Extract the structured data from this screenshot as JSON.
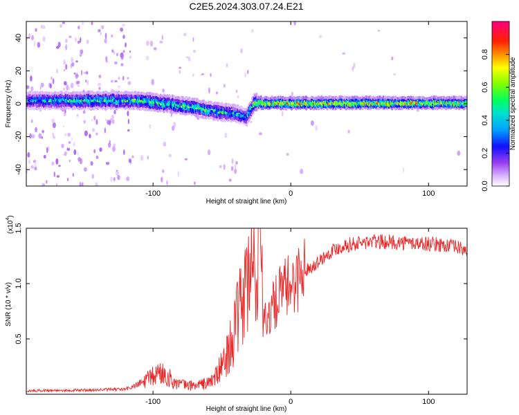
{
  "figure_title": "C2E5.2024.303.07.24.E21",
  "chart_data": [
    {
      "type": "heatmap",
      "title": "C2E5.2024.303.07.24.E21",
      "xlabel": "Height of straight line (km)",
      "ylabel": "Frequency (Hz)",
      "xlim": [
        -192,
        128
      ],
      "ylim": [
        -50,
        50
      ],
      "x_ticks": [
        -100,
        0,
        100
      ],
      "y_ticks": [
        -40,
        -20,
        0,
        20,
        40
      ],
      "x_tick_labels": [
        "-100",
        "0",
        "100"
      ],
      "y_tick_labels": [
        "-40",
        "-20",
        "0",
        "20",
        "40"
      ],
      "grid": false,
      "colorbar": {
        "label": "Normalized spectral amplitude",
        "range": [
          0,
          1
        ],
        "ticks": [
          0.0,
          0.2,
          0.4,
          0.6,
          0.8
        ],
        "tick_labels": [
          "0.0",
          "0.2",
          "0.4",
          "0.6",
          "0.8"
        ],
        "colormap": [
          "#ffffff",
          "#cc99ff",
          "#8a2be2",
          "#0000ff",
          "#00bfff",
          "#00ff7f",
          "#7fff00",
          "#ffff00",
          "#ff8000",
          "#ff0000",
          "#ff0080"
        ]
      },
      "ridge": {
        "x": [
          -192,
          -170,
          -150,
          -130,
          -112,
          -100,
          -90,
          -80,
          -70,
          -60,
          -50,
          -40,
          -32,
          -26,
          -20,
          -10,
          0,
          10,
          40,
          80,
          128
        ],
        "freq": [
          2,
          2,
          2,
          2,
          2,
          1,
          0,
          -1,
          -2,
          -4,
          -5,
          -6,
          -8,
          1,
          0.5,
          0.5,
          0.5,
          0.5,
          0.5,
          0.5,
          0.5
        ],
        "amplitude": [
          0.45,
          0.5,
          0.55,
          0.55,
          0.55,
          0.6,
          0.6,
          0.6,
          0.6,
          0.55,
          0.55,
          0.5,
          0.45,
          0.75,
          0.85,
          0.85,
          0.85,
          0.85,
          0.8,
          0.8,
          0.75
        ]
      }
    },
    {
      "type": "line",
      "xlabel": "Height of straight line (km)",
      "ylabel": "SNR (10 * v/v)",
      "y_multiplier_label": "(x10",
      "y_multiplier_exponent": "4",
      "y_multiplier_close": ")",
      "xlim": [
        -192,
        128
      ],
      "ylim": [
        0,
        15000
      ],
      "x_ticks": [
        -100,
        0,
        100
      ],
      "y_ticks": [
        5000,
        10000,
        15000
      ],
      "x_tick_labels": [
        "-100",
        "0",
        "100"
      ],
      "y_tick_labels": [
        "0.5",
        "1.0",
        "1.5"
      ],
      "grid": false,
      "series": [
        {
          "color": "#ee2222",
          "x": [
            -192,
            -180,
            -160,
            -140,
            -120,
            -110,
            -100,
            -95,
            -90,
            -85,
            -80,
            -75,
            -70,
            -65,
            -60,
            -55,
            -50,
            -45,
            -40,
            -36,
            -32,
            -28,
            -25,
            -22,
            -20,
            -18,
            -15,
            -12,
            -8,
            -4,
            0,
            5,
            10,
            15,
            20,
            30,
            40,
            60,
            80,
            100,
            110,
            120,
            128
          ],
          "y": [
            300,
            350,
            350,
            400,
            450,
            900,
            1600,
            2000,
            1700,
            1100,
            900,
            800,
            800,
            900,
            1000,
            1500,
            2500,
            4000,
            6000,
            8000,
            10000,
            11000,
            12500,
            14500,
            9000,
            6500,
            7500,
            8000,
            9000,
            9500,
            10000,
            10500,
            11200,
            11500,
            12000,
            13000,
            13500,
            13800,
            13700,
            13600,
            13500,
            13300,
            13000
          ]
        }
      ]
    }
  ]
}
